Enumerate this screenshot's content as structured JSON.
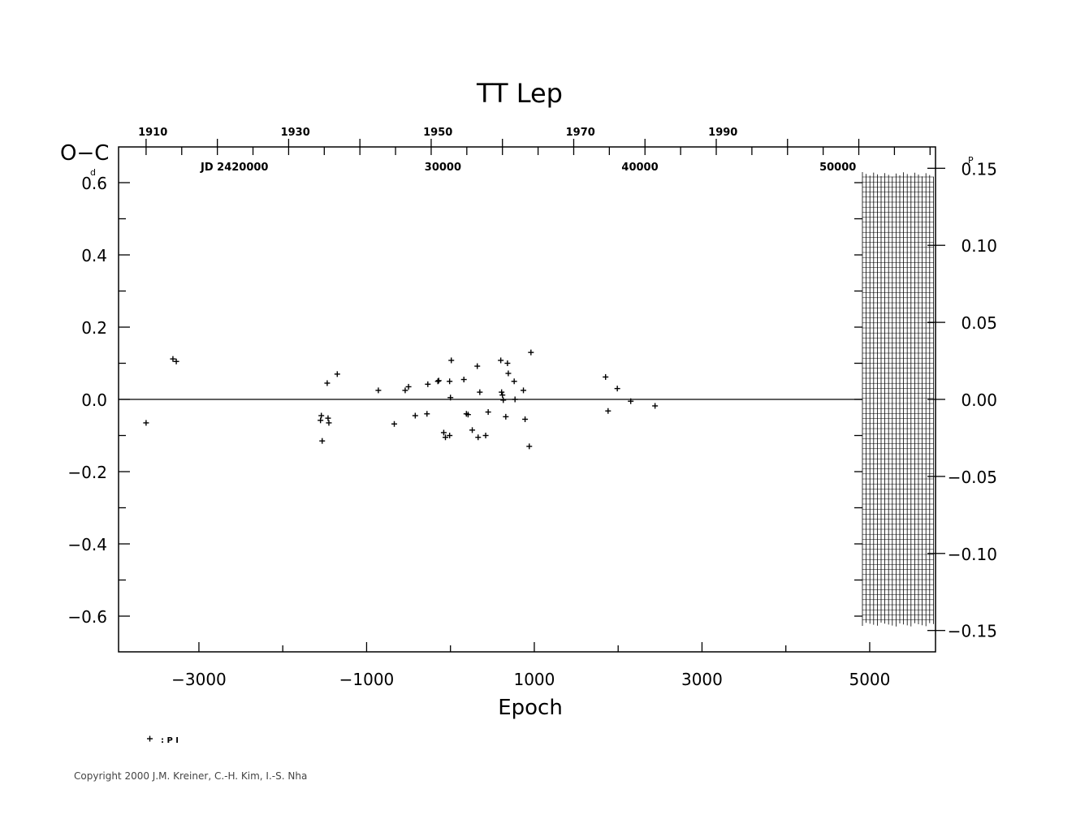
{
  "chart_data": {
    "type": "scatter",
    "title": "TT Lep",
    "xlabel": "Epoch",
    "ylabel_left": "O−C",
    "ylabel_left_unit": "d",
    "ylabel_right_unit": "P",
    "xlim": [
      -4000,
      5800
    ],
    "ylim": [
      -0.7,
      0.7
    ],
    "ylim_right": [
      -0.163,
      0.163
    ],
    "x_ticks": [
      -3000,
      -1000,
      1000,
      3000,
      5000
    ],
    "x_tick_labels": [
      "−3000",
      "−1000",
      "1000",
      "3000",
      "5000"
    ],
    "y_ticks": [
      0.6,
      0.4,
      0.2,
      0.0,
      -0.2,
      -0.4,
      -0.6
    ],
    "y_tick_labels": [
      "0.6",
      "0.4",
      "0.2",
      "0.0",
      "−0.2",
      "−0.4",
      "−0.6"
    ],
    "y_right_ticks": [
      0.15,
      0.1,
      0.05,
      0.0,
      -0.05,
      -0.1,
      -0.15
    ],
    "y_right_tick_labels": [
      "0.15",
      "0.10",
      "0.05",
      "0.00",
      "−0.05",
      "−0.10",
      "−0.15"
    ],
    "top_year_ticks": [
      1910,
      1930,
      1950,
      1970,
      1990
    ],
    "top_year_labels": [
      "1910",
      "1930",
      "1950",
      "1970",
      "1990"
    ],
    "top_year_epochs": [
      -3550,
      -1850,
      -150,
      1550,
      3250
    ],
    "jd_label_prefix": "JD 2420000",
    "jd_ticks": [
      "30000",
      "40000",
      "50000"
    ],
    "jd_epochs": [
      -90,
      2260,
      4620
    ],
    "zero_line": true,
    "series": [
      {
        "name": "PI",
        "marker": "plus",
        "points": [
          [
            -3630,
            -0.065
          ],
          [
            -3310,
            0.112
          ],
          [
            -3270,
            0.105
          ],
          [
            -1550,
            -0.058
          ],
          [
            -1540,
            -0.045
          ],
          [
            -1530,
            -0.115
          ],
          [
            -1470,
            0.045
          ],
          [
            -1460,
            -0.052
          ],
          [
            -1450,
            -0.065
          ],
          [
            -1350,
            0.07
          ],
          [
            -860,
            0.025
          ],
          [
            -670,
            -0.068
          ],
          [
            -540,
            0.025
          ],
          [
            -500,
            0.035
          ],
          [
            -420,
            -0.045
          ],
          [
            -280,
            -0.04
          ],
          [
            -270,
            0.042
          ],
          [
            -150,
            0.05
          ],
          [
            -140,
            0.052
          ],
          [
            -80,
            -0.092
          ],
          [
            -60,
            -0.105
          ],
          [
            -10,
            -0.1
          ],
          [
            -10,
            0.05
          ],
          [
            0,
            0.005
          ],
          [
            10,
            0.108
          ],
          [
            160,
            0.055
          ],
          [
            190,
            -0.04
          ],
          [
            210,
            -0.042
          ],
          [
            260,
            -0.085
          ],
          [
            320,
            0.092
          ],
          [
            330,
            -0.105
          ],
          [
            350,
            0.02
          ],
          [
            420,
            -0.1
          ],
          [
            450,
            -0.035
          ],
          [
            600,
            0.108
          ],
          [
            610,
            0.02
          ],
          [
            620,
            0.012
          ],
          [
            630,
            -0.002
          ],
          [
            660,
            -0.048
          ],
          [
            680,
            0.1
          ],
          [
            690,
            0.072
          ],
          [
            760,
            0.05
          ],
          [
            770,
            0.0
          ],
          [
            870,
            0.025
          ],
          [
            890,
            -0.055
          ],
          [
            940,
            -0.13
          ],
          [
            960,
            0.13
          ],
          [
            1850,
            0.062
          ],
          [
            1880,
            -0.032
          ],
          [
            1990,
            0.03
          ],
          [
            2150,
            -0.005
          ],
          [
            2440,
            -0.018
          ]
        ]
      }
    ],
    "legend_text": ": P I",
    "legend_symbol": "+",
    "legend_location": "bottom-left, below axes"
  },
  "copyright": "Copyright 2000 J.M. Kreiner, C.-H. Kim, I.-S. Nha"
}
